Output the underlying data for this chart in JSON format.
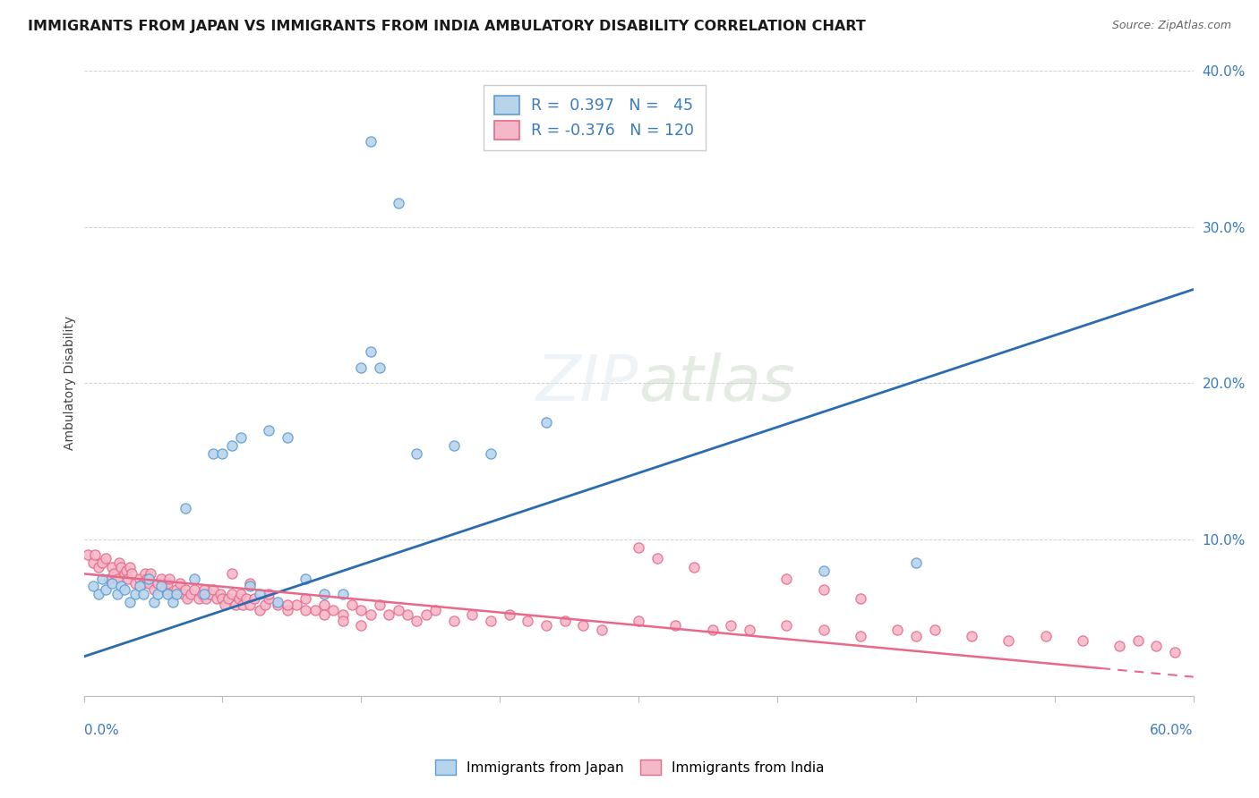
{
  "title": "IMMIGRANTS FROM JAPAN VS IMMIGRANTS FROM INDIA AMBULATORY DISABILITY CORRELATION CHART",
  "source": "Source: ZipAtlas.com",
  "ylabel": "Ambulatory Disability",
  "xlim": [
    0.0,
    0.6
  ],
  "ylim": [
    0.0,
    0.4
  ],
  "ytick_vals": [
    0.0,
    0.1,
    0.2,
    0.3,
    0.4
  ],
  "ytick_labels": [
    "",
    "10.0%",
    "20.0%",
    "30.0%",
    "40.0%"
  ],
  "blue_face": "#b8d4ea",
  "blue_edge": "#5b9bd5",
  "blue_line": "#2b6cb0",
  "pink_face": "#f4b8c8",
  "pink_edge": "#e8688a",
  "pink_line": "#e8688a",
  "grid_color": "#cccccc",
  "background": "#ffffff",
  "legend_label1": "R =  0.397   N =   45",
  "legend_label2": "R = -0.376   N = 120",
  "bottom_label1": "Immigrants from Japan",
  "bottom_label2": "Immigrants from India",
  "japan_x": [
    0.005,
    0.008,
    0.01,
    0.012,
    0.015,
    0.018,
    0.02,
    0.022,
    0.025,
    0.028,
    0.03,
    0.032,
    0.035,
    0.038,
    0.04,
    0.042,
    0.045,
    0.048,
    0.05,
    0.055,
    0.06,
    0.065,
    0.07,
    0.075,
    0.08,
    0.085,
    0.09,
    0.095,
    0.1,
    0.105,
    0.11,
    0.12,
    0.13,
    0.14,
    0.15,
    0.155,
    0.16,
    0.18,
    0.2,
    0.22,
    0.4,
    0.45,
    0.155,
    0.17,
    0.25
  ],
  "japan_y": [
    0.07,
    0.065,
    0.075,
    0.068,
    0.072,
    0.065,
    0.07,
    0.068,
    0.06,
    0.065,
    0.07,
    0.065,
    0.075,
    0.06,
    0.065,
    0.07,
    0.065,
    0.06,
    0.065,
    0.12,
    0.075,
    0.065,
    0.155,
    0.155,
    0.16,
    0.165,
    0.07,
    0.065,
    0.17,
    0.06,
    0.165,
    0.075,
    0.065,
    0.065,
    0.21,
    0.22,
    0.21,
    0.155,
    0.16,
    0.155,
    0.08,
    0.085,
    0.355,
    0.315,
    0.175
  ],
  "india_x": [
    0.002,
    0.005,
    0.006,
    0.008,
    0.01,
    0.012,
    0.014,
    0.015,
    0.016,
    0.018,
    0.019,
    0.02,
    0.022,
    0.023,
    0.024,
    0.025,
    0.026,
    0.028,
    0.03,
    0.032,
    0.033,
    0.034,
    0.035,
    0.036,
    0.038,
    0.04,
    0.042,
    0.044,
    0.045,
    0.046,
    0.048,
    0.05,
    0.052,
    0.054,
    0.055,
    0.056,
    0.058,
    0.06,
    0.062,
    0.064,
    0.065,
    0.066,
    0.068,
    0.07,
    0.072,
    0.074,
    0.075,
    0.076,
    0.078,
    0.08,
    0.082,
    0.084,
    0.085,
    0.086,
    0.088,
    0.09,
    0.092,
    0.095,
    0.098,
    0.1,
    0.105,
    0.11,
    0.115,
    0.12,
    0.125,
    0.13,
    0.135,
    0.14,
    0.145,
    0.15,
    0.155,
    0.16,
    0.165,
    0.17,
    0.175,
    0.18,
    0.185,
    0.19,
    0.2,
    0.21,
    0.22,
    0.23,
    0.24,
    0.25,
    0.26,
    0.27,
    0.28,
    0.3,
    0.32,
    0.34,
    0.35,
    0.36,
    0.38,
    0.4,
    0.42,
    0.44,
    0.45,
    0.46,
    0.48,
    0.5,
    0.52,
    0.54,
    0.56,
    0.57,
    0.58,
    0.59,
    0.3,
    0.31,
    0.33,
    0.38,
    0.4,
    0.42,
    0.08,
    0.09,
    0.1,
    0.11,
    0.12,
    0.13,
    0.14,
    0.15
  ],
  "india_y": [
    0.09,
    0.085,
    0.09,
    0.082,
    0.085,
    0.088,
    0.075,
    0.082,
    0.078,
    0.075,
    0.085,
    0.082,
    0.078,
    0.08,
    0.075,
    0.082,
    0.078,
    0.072,
    0.075,
    0.072,
    0.078,
    0.075,
    0.072,
    0.078,
    0.068,
    0.072,
    0.075,
    0.068,
    0.072,
    0.075,
    0.065,
    0.068,
    0.072,
    0.065,
    0.068,
    0.062,
    0.065,
    0.068,
    0.062,
    0.065,
    0.068,
    0.062,
    0.065,
    0.068,
    0.062,
    0.065,
    0.062,
    0.058,
    0.062,
    0.065,
    0.058,
    0.062,
    0.065,
    0.058,
    0.062,
    0.058,
    0.062,
    0.055,
    0.058,
    0.062,
    0.058,
    0.055,
    0.058,
    0.062,
    0.055,
    0.058,
    0.055,
    0.052,
    0.058,
    0.055,
    0.052,
    0.058,
    0.052,
    0.055,
    0.052,
    0.048,
    0.052,
    0.055,
    0.048,
    0.052,
    0.048,
    0.052,
    0.048,
    0.045,
    0.048,
    0.045,
    0.042,
    0.048,
    0.045,
    0.042,
    0.045,
    0.042,
    0.045,
    0.042,
    0.038,
    0.042,
    0.038,
    0.042,
    0.038,
    0.035,
    0.038,
    0.035,
    0.032,
    0.035,
    0.032,
    0.028,
    0.095,
    0.088,
    0.082,
    0.075,
    0.068,
    0.062,
    0.078,
    0.072,
    0.065,
    0.058,
    0.055,
    0.052,
    0.048,
    0.045
  ],
  "japan_line_x": [
    0.0,
    0.6
  ],
  "japan_line_y": [
    0.025,
    0.26
  ],
  "india_line_x": [
    0.0,
    0.6
  ],
  "india_line_y": [
    0.078,
    0.012
  ]
}
